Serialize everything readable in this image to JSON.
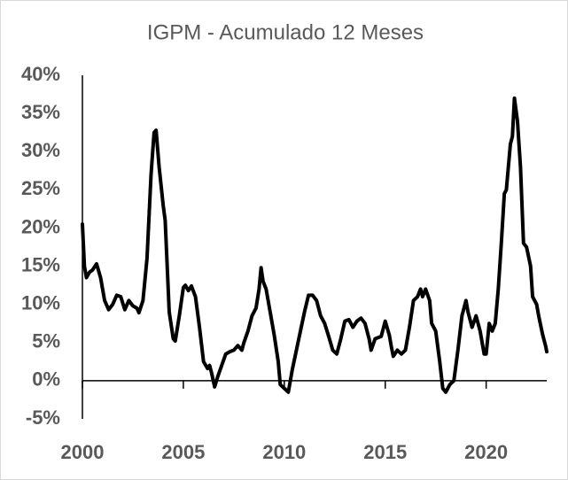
{
  "chart_data": {
    "type": "line",
    "title": "IGPM - Acumulado 12 Meses",
    "x": [
      2000.0,
      2000.1,
      2000.2,
      2000.35,
      2000.5,
      2000.7,
      2000.9,
      2001.1,
      2001.3,
      2001.5,
      2001.7,
      2001.9,
      2002.1,
      2002.3,
      2002.5,
      2002.7,
      2002.8,
      2003.0,
      2003.2,
      2003.4,
      2003.55,
      2003.65,
      2003.8,
      2004.0,
      2004.1,
      2004.2,
      2004.3,
      2004.5,
      2004.6,
      2004.8,
      2005.0,
      2005.1,
      2005.25,
      2005.4,
      2005.6,
      2005.8,
      2006.0,
      2006.2,
      2006.3,
      2006.4,
      2006.55,
      2006.7,
      2006.9,
      2007.1,
      2007.3,
      2007.5,
      2007.7,
      2007.9,
      2008.0,
      2008.2,
      2008.4,
      2008.6,
      2008.75,
      2008.85,
      2008.95,
      2009.1,
      2009.3,
      2009.5,
      2009.7,
      2009.8,
      2010.0,
      2010.2,
      2010.4,
      2010.6,
      2010.8,
      2011.0,
      2011.2,
      2011.4,
      2011.6,
      2011.8,
      2012.0,
      2012.2,
      2012.4,
      2012.6,
      2012.8,
      2013.0,
      2013.2,
      2013.4,
      2013.6,
      2013.8,
      2014.0,
      2014.2,
      2014.3,
      2014.5,
      2014.8,
      2015.0,
      2015.2,
      2015.3,
      2015.4,
      2015.6,
      2015.8,
      2016.0,
      2016.2,
      2016.4,
      2016.6,
      2016.75,
      2016.85,
      2017.0,
      2017.2,
      2017.3,
      2017.5,
      2017.7,
      2017.85,
      2018.0,
      2018.2,
      2018.4,
      2018.6,
      2018.8,
      2019.0,
      2019.1,
      2019.3,
      2019.5,
      2019.7,
      2019.9,
      2020.0,
      2020.15,
      2020.3,
      2020.45,
      2020.6,
      2020.75,
      2020.9,
      2021.0,
      2021.2,
      2021.3,
      2021.4,
      2021.55,
      2021.7,
      2021.85,
      2022.0,
      2022.2,
      2022.3,
      2022.5,
      2022.6,
      2022.8,
      2022.95,
      2023.0
    ],
    "series": [
      {
        "name": "IGPM",
        "color": "#000000",
        "values": [
          20.5,
          15,
          13.5,
          14.2,
          14.5,
          15.3,
          13.5,
          10.5,
          9.3,
          10,
          11.2,
          11,
          9.3,
          10.5,
          9.8,
          9.5,
          8.9,
          10.5,
          16,
          27,
          32.5,
          32.8,
          28,
          23,
          21,
          15,
          9,
          5.5,
          5.2,
          8.5,
          12.2,
          12.5,
          11.8,
          12.4,
          11,
          7,
          2.5,
          1.6,
          2,
          1,
          -0.8,
          0.5,
          2,
          3.5,
          3.8,
          4,
          4.6,
          4,
          5,
          6.5,
          8.5,
          9.5,
          12,
          14.8,
          13,
          12,
          9,
          6,
          2.5,
          -0.5,
          -1,
          -1.5,
          1.5,
          4,
          6.5,
          9,
          11.2,
          11.2,
          10.5,
          8.5,
          7.5,
          5.8,
          4,
          3.5,
          5.5,
          7.8,
          8,
          7,
          7.8,
          8.2,
          7.5,
          5.5,
          4,
          5.5,
          5.8,
          7.8,
          6,
          4.5,
          3.2,
          4,
          3.5,
          4,
          7,
          10.5,
          11,
          12,
          11,
          12,
          10.5,
          7.5,
          6.5,
          2.5,
          -1,
          -1.5,
          -0.5,
          0,
          4,
          8.5,
          10.5,
          9,
          7,
          8.5,
          6.5,
          3.5,
          3.5,
          7.5,
          6.5,
          7.5,
          12,
          18,
          24.5,
          25,
          31,
          32,
          37,
          34,
          28,
          18,
          17.5,
          15,
          11,
          10,
          8.5,
          6,
          4.5,
          3.8
        ]
      }
    ],
    "xlim": [
      2000,
      2023
    ],
    "xticks": [
      2000,
      2005,
      2010,
      2015,
      2020
    ],
    "ylim": [
      -5,
      40
    ],
    "yticks": [
      {
        "value": -5,
        "label": "-5%"
      },
      {
        "value": 0,
        "label": "0%"
      },
      {
        "value": 5,
        "label": "5%"
      },
      {
        "value": 10,
        "label": "10%"
      },
      {
        "value": 15,
        "label": "15%"
      },
      {
        "value": 20,
        "label": "20%"
      },
      {
        "value": 25,
        "label": "25%"
      },
      {
        "value": 30,
        "label": "30%"
      },
      {
        "value": 35,
        "label": "35%"
      },
      {
        "value": 40,
        "label": "40%"
      }
    ],
    "grid": false
  }
}
